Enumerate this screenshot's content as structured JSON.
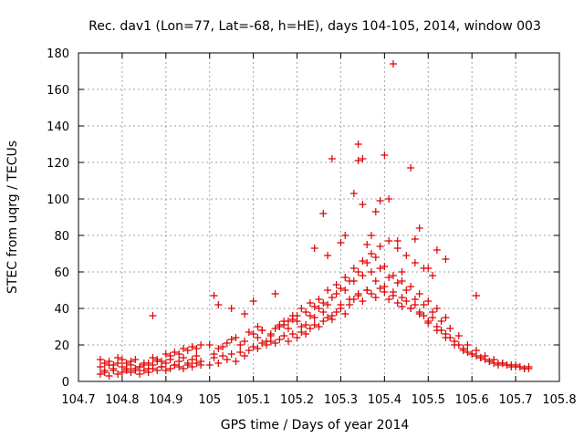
{
  "chart_data": {
    "type": "scatter",
    "title": "Rec. dav1 (Lon=77, Lat=-68, h=HE), days 104-105, 2014, window 003",
    "xlabel": "GPS time / Days of year 2014",
    "ylabel": "STEC from uqrg / TECUs",
    "xlim": [
      104.7,
      105.8
    ],
    "ylim": [
      0,
      180
    ],
    "xticks": [
      "104.7",
      "104.8",
      "104.9",
      "105",
      "105.1",
      "105.2",
      "105.3",
      "105.4",
      "105.5",
      "105.6",
      "105.7",
      "105.8"
    ],
    "yticks": [
      "0",
      "20",
      "40",
      "60",
      "80",
      "100",
      "120",
      "140",
      "160",
      "180"
    ],
    "grid": true,
    "marker": "+",
    "color": "#dd0000",
    "series": [
      {
        "x": [
          104.75,
          104.76,
          104.77,
          104.78,
          104.79,
          104.8,
          104.81,
          104.82,
          104.83,
          104.84,
          104.85,
          104.86,
          104.87,
          104.88,
          104.89,
          104.9,
          104.91,
          104.92,
          104.93,
          104.94,
          104.95,
          104.96,
          104.97,
          104.98,
          104.75,
          104.76,
          104.77,
          104.78,
          104.79,
          104.8,
          104.81,
          104.82,
          104.83,
          104.84,
          104.85,
          104.86,
          104.87,
          104.88,
          104.89,
          104.9,
          104.91,
          104.92,
          104.93,
          104.94,
          104.95,
          104.96,
          104.97,
          104.98,
          104.75,
          104.77,
          104.79,
          104.81,
          104.83,
          104.85,
          104.87,
          104.89,
          104.91,
          104.93,
          104.95,
          104.97,
          104.76,
          104.78,
          104.8,
          104.82,
          104.84,
          104.86,
          104.88,
          104.9,
          104.92,
          104.94,
          104.96,
          104.98,
          104.87,
          105.0,
          105.01,
          105.02,
          105.03,
          105.04,
          105.05,
          105.06,
          105.07,
          105.08,
          105.09,
          105.1,
          105.11,
          105.12,
          105.13,
          105.14,
          105.15,
          105.16,
          105.17,
          105.18,
          105.19,
          105.2,
          105.21,
          105.22,
          105.23,
          105.24,
          105.25,
          105.26,
          105.27,
          105.28,
          105.29,
          105.3,
          105.31,
          105.32,
          105.33,
          105.34,
          105.35,
          105.36,
          105.37,
          105.38,
          105.39,
          105.4,
          105.41,
          105.42,
          105.43,
          105.44,
          105.45,
          105.46,
          105.47,
          105.48,
          105.49,
          105.5,
          105.51,
          105.52,
          105.53,
          105.54,
          105.55,
          105.56,
          105.57,
          105.58,
          105.59,
          105.6,
          105.61,
          105.62,
          105.63,
          105.64,
          105.65,
          105.66,
          105.67,
          105.68,
          105.69,
          105.7,
          105.71,
          105.72,
          105.73,
          105.0,
          105.02,
          105.04,
          105.06,
          105.08,
          105.1,
          105.12,
          105.14,
          105.16,
          105.18,
          105.2,
          105.22,
          105.24,
          105.26,
          105.28,
          105.3,
          105.32,
          105.34,
          105.36,
          105.38,
          105.4,
          105.42,
          105.44,
          105.46,
          105.48,
          105.5,
          105.52,
          105.54,
          105.56,
          105.58,
          105.6,
          105.62,
          105.64,
          105.66,
          105.68,
          105.7,
          105.72,
          105.01,
          105.03,
          105.05,
          105.07,
          105.09,
          105.11,
          105.13,
          105.15,
          105.17,
          105.19,
          105.21,
          105.23,
          105.25,
          105.27,
          105.29,
          105.31,
          105.33,
          105.35,
          105.37,
          105.39,
          105.41,
          105.43,
          105.45,
          105.47,
          105.49,
          105.51,
          105.53,
          105.55,
          105.57,
          105.59,
          105.61,
          105.63,
          105.65,
          105.67,
          105.69,
          105.71,
          105.73,
          105.12,
          105.14,
          105.16,
          105.18,
          105.2,
          105.22,
          105.24,
          105.26,
          105.28,
          105.3,
          105.32,
          105.34,
          105.36,
          105.38,
          105.4,
          105.42,
          105.44,
          105.46,
          105.48,
          105.5,
          105.52,
          105.54,
          105.17,
          105.19,
          105.21,
          105.23,
          105.25,
          105.27,
          105.29,
          105.31,
          105.33,
          105.35,
          105.37,
          105.39,
          105.41,
          105.43,
          105.45,
          105.47,
          105.49,
          105.51,
          105.01,
          105.02,
          105.05,
          105.08,
          105.1,
          105.11,
          105.15,
          105.24,
          105.26,
          105.27,
          105.28,
          105.3,
          105.31,
          105.33,
          105.34,
          105.34,
          105.35,
          105.35,
          105.36,
          105.37,
          105.38,
          105.39,
          105.4,
          105.41,
          105.42,
          105.43,
          105.44,
          105.46,
          105.47,
          105.48,
          105.5,
          105.52,
          105.54,
          105.61
        ],
        "y": [
          8,
          6,
          9,
          7,
          10,
          8,
          6,
          9,
          7,
          8,
          10,
          7,
          9,
          11,
          8,
          10,
          12,
          9,
          11,
          13,
          10,
          12,
          14,
          11,
          4,
          5,
          3,
          6,
          4,
          5,
          7,
          5,
          6,
          4,
          6,
          5,
          7,
          6,
          8,
          6,
          7,
          9,
          8,
          7,
          9,
          8,
          10,
          9,
          12,
          11,
          13,
          10,
          12,
          9,
          13,
          11,
          14,
          15,
          17,
          18,
          10,
          9,
          12,
          11,
          8,
          10,
          12,
          15,
          16,
          18,
          19,
          20,
          36,
          9,
          13,
          10,
          14,
          12,
          15,
          11,
          16,
          14,
          17,
          19,
          18,
          21,
          20,
          22,
          21,
          23,
          25,
          22,
          26,
          24,
          27,
          26,
          29,
          31,
          30,
          33,
          35,
          34,
          38,
          40,
          37,
          42,
          45,
          47,
          44,
          50,
          48,
          46,
          51,
          49,
          45,
          47,
          43,
          41,
          44,
          40,
          42,
          38,
          36,
          33,
          35,
          30,
          28,
          26,
          24,
          22,
          20,
          18,
          16,
          15,
          14,
          13,
          12,
          11,
          10,
          9,
          10,
          9,
          8,
          9,
          8,
          7,
          8,
          20,
          18,
          21,
          24,
          22,
          26,
          28,
          25,
          30,
          29,
          33,
          31,
          35,
          38,
          36,
          42,
          45,
          48,
          50,
          55,
          52,
          49,
          46,
          40,
          37,
          32,
          28,
          24,
          20,
          17,
          15,
          13,
          11,
          10,
          9,
          8,
          7,
          15,
          19,
          23,
          20,
          27,
          24,
          22,
          29,
          31,
          34,
          30,
          36,
          40,
          42,
          48,
          50,
          55,
          58,
          60,
          62,
          57,
          54,
          50,
          45,
          42,
          38,
          33,
          29,
          25,
          20,
          17,
          14,
          12,
          10,
          9,
          8,
          7,
          28,
          26,
          31,
          33,
          36,
          38,
          41,
          43,
          46,
          51,
          55,
          60,
          65,
          68,
          63,
          58,
          55,
          52,
          48,
          44,
          40,
          35,
          33,
          36,
          40,
          43,
          45,
          50,
          53,
          57,
          62,
          66,
          70,
          74,
          77,
          73,
          69,
          65,
          62,
          58,
          47,
          42,
          40,
          37,
          44,
          30,
          48,
          73,
          92,
          69,
          122,
          76,
          80,
          103,
          130,
          121,
          122,
          97,
          75,
          80,
          93,
          99,
          124,
          100,
          174,
          77,
          60,
          117,
          78,
          84,
          62,
          72,
          67,
          47
        ]
      }
    ]
  }
}
